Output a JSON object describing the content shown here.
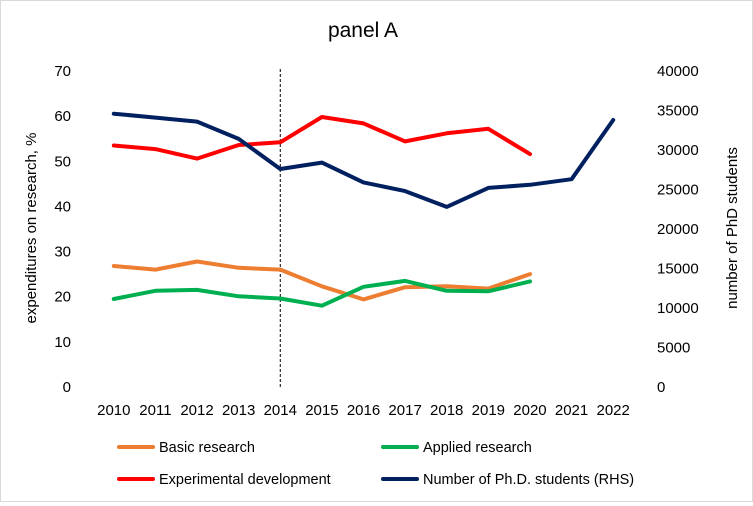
{
  "chart_data": {
    "type": "line",
    "title": "panel A",
    "x": [
      "2010",
      "2011",
      "2012",
      "2013",
      "2014",
      "2015",
      "2016",
      "2017",
      "2018",
      "2019",
      "2020",
      "2021",
      "2022"
    ],
    "ylabel": "expenditures on research, %",
    "y2label": "number of PhD students",
    "ylim": [
      0,
      70
    ],
    "y2lim": [
      0,
      40000
    ],
    "yticks": [
      "0",
      "10",
      "20",
      "30",
      "40",
      "50",
      "60",
      "70"
    ],
    "y2ticks": [
      "0",
      "5000",
      "10000",
      "15000",
      "20000",
      "25000",
      "30000",
      "35000",
      "40000"
    ],
    "reference_line_x": "2014",
    "grid": false,
    "legend_position": "bottom",
    "series": [
      {
        "name": "Basic research",
        "axis": "left",
        "color": "#ED7D31",
        "values": [
          26.8,
          26.0,
          27.8,
          26.4,
          26.0,
          22.3,
          19.4,
          22.1,
          22.3,
          21.8,
          25.0,
          null,
          null
        ]
      },
      {
        "name": "Applied research",
        "axis": "left",
        "color": "#00B050",
        "values": [
          19.5,
          21.3,
          21.5,
          20.1,
          19.6,
          18.0,
          22.2,
          23.5,
          21.3,
          21.2,
          23.4,
          null,
          null
        ]
      },
      {
        "name": "Experimental development",
        "axis": "left",
        "color": "#FF0000",
        "values": [
          53.5,
          52.7,
          50.6,
          53.6,
          54.2,
          59.8,
          58.4,
          54.4,
          56.2,
          57.2,
          51.6,
          null,
          null
        ]
      },
      {
        "name": "Number of Ph.D. students (RHS)",
        "axis": "right",
        "color": "#002060",
        "values": [
          34600,
          34100,
          33600,
          31400,
          27600,
          28400,
          25900,
          24800,
          22800,
          25200,
          25600,
          26300,
          33800
        ]
      }
    ]
  }
}
